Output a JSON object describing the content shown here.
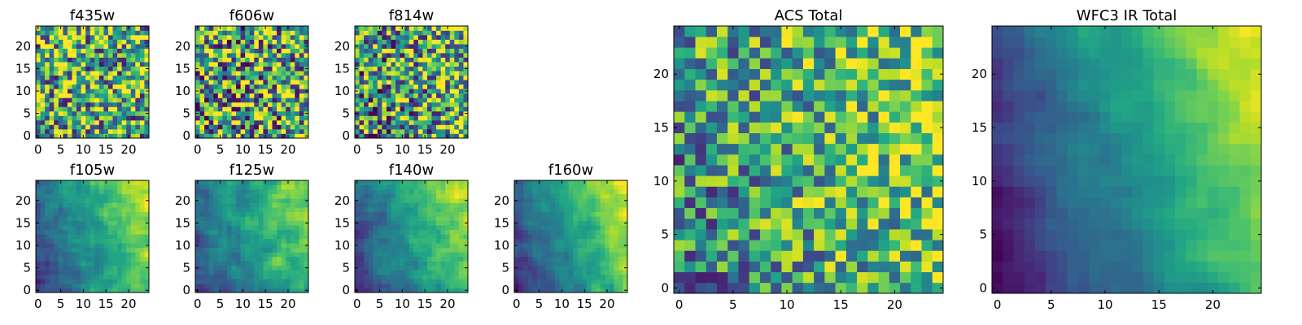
{
  "colormap": "viridis",
  "colors": {
    "frame": "#000000",
    "background": "#ffffff"
  },
  "chart_data": [
    {
      "type": "heatmap",
      "title": "f435w",
      "grid": [
        25,
        25
      ],
      "xlim": [
        0,
        24
      ],
      "ylim": [
        0,
        24
      ],
      "xticks": [
        0,
        5,
        10,
        15,
        20
      ],
      "yticks": [
        0,
        5,
        10,
        15,
        20
      ],
      "field": "noise",
      "seed": 11,
      "gradient": 0.0,
      "contrast": 0.55,
      "mean": 0.62
    },
    {
      "type": "heatmap",
      "title": "f606w",
      "grid": [
        25,
        25
      ],
      "xlim": [
        0,
        24
      ],
      "ylim": [
        0,
        24
      ],
      "xticks": [
        0,
        5,
        10,
        15,
        20
      ],
      "yticks": [
        0,
        5,
        10,
        15,
        20
      ],
      "field": "noise",
      "seed": 23,
      "gradient": 0.1,
      "contrast": 0.6,
      "mean": 0.6
    },
    {
      "type": "heatmap",
      "title": "f814w",
      "grid": [
        25,
        25
      ],
      "xlim": [
        0,
        24
      ],
      "ylim": [
        0,
        24
      ],
      "xticks": [
        0,
        5,
        10,
        15,
        20
      ],
      "yticks": [
        0,
        5,
        10,
        15,
        20
      ],
      "field": "noise",
      "seed": 37,
      "gradient": 0.25,
      "contrast": 0.55,
      "mean": 0.58
    },
    {
      "type": "heatmap",
      "title": "f105w",
      "grid": [
        25,
        25
      ],
      "xlim": [
        0,
        24
      ],
      "ylim": [
        0,
        24
      ],
      "xticks": [
        0,
        5,
        10,
        15,
        20
      ],
      "yticks": [
        0,
        5,
        10,
        15,
        20
      ],
      "field": "smooth",
      "seed": 41,
      "gradient": 0.7,
      "contrast": 0.3,
      "mean": 0.55
    },
    {
      "type": "heatmap",
      "title": "f125w",
      "grid": [
        25,
        25
      ],
      "xlim": [
        0,
        24
      ],
      "ylim": [
        0,
        24
      ],
      "xticks": [
        0,
        5,
        10,
        15,
        20
      ],
      "yticks": [
        0,
        5,
        10,
        15,
        20
      ],
      "field": "smooth",
      "seed": 53,
      "gradient": 0.7,
      "contrast": 0.32,
      "mean": 0.55
    },
    {
      "type": "heatmap",
      "title": "f140w",
      "grid": [
        25,
        25
      ],
      "xlim": [
        0,
        24
      ],
      "ylim": [
        0,
        24
      ],
      "xticks": [
        0,
        5,
        10,
        15,
        20
      ],
      "yticks": [
        0,
        5,
        10,
        15,
        20
      ],
      "field": "smooth",
      "seed": 67,
      "gradient": 0.75,
      "contrast": 0.28,
      "mean": 0.55
    },
    {
      "type": "heatmap",
      "title": "f160w",
      "grid": [
        25,
        25
      ],
      "xlim": [
        0,
        24
      ],
      "ylim": [
        0,
        24
      ],
      "xticks": [
        0,
        5,
        10,
        15,
        20
      ],
      "yticks": [
        0,
        5,
        10,
        15,
        20
      ],
      "field": "smooth",
      "seed": 79,
      "gradient": 0.8,
      "contrast": 0.25,
      "mean": 0.55
    },
    {
      "type": "heatmap",
      "title": "ACS Total",
      "grid": [
        25,
        25
      ],
      "xlim": [
        0,
        24
      ],
      "ylim": [
        0,
        24
      ],
      "xticks": [
        0,
        5,
        10,
        15,
        20
      ],
      "yticks": [
        0,
        5,
        10,
        15,
        20
      ],
      "field": "noise",
      "seed": 97,
      "gradient": 0.35,
      "contrast": 0.4,
      "mean": 0.62
    },
    {
      "type": "heatmap",
      "title": "WFC3 IR Total",
      "grid": [
        25,
        25
      ],
      "xlim": [
        0,
        24
      ],
      "ylim": [
        0,
        24
      ],
      "xticks": [
        0,
        5,
        10,
        15,
        20
      ],
      "yticks": [
        0,
        5,
        10,
        15,
        20
      ],
      "field": "smooth",
      "seed": 101,
      "gradient": 0.95,
      "contrast": 0.18,
      "mean": 0.5
    }
  ]
}
